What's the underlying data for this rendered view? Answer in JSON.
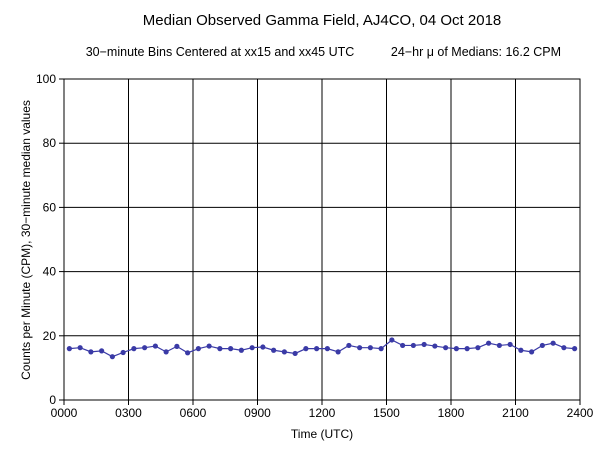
{
  "chart_data": {
    "type": "line",
    "title": "Median Observed Gamma Field, AJ4CO, 04 Oct 2018",
    "subtitle_left": "30−minute Bins Centered at xx15 and xx45 UTC",
    "subtitle_right": "24−hr μ of Medians: 16.2 CPM",
    "xlabel": "Time (UTC)",
    "ylabel": "Counts per Minute (CPM), 30−minute median values",
    "xlim": [
      0,
      2400
    ],
    "ylim": [
      0,
      100
    ],
    "x_tick_labels": [
      "0000",
      "0300",
      "0600",
      "0900",
      "1200",
      "1500",
      "1800",
      "2100",
      "2400"
    ],
    "y_tick_labels": [
      "0",
      "20",
      "40",
      "60",
      "80",
      "100"
    ],
    "grid": true,
    "line_color": "#3a3aa6",
    "series": [
      {
        "x": [
          "0015",
          "0045",
          "0115",
          "0145",
          "0215",
          "0245",
          "0315",
          "0345",
          "0415",
          "0445",
          "0515",
          "0545",
          "0615",
          "0645",
          "0715",
          "0745",
          "0815",
          "0845",
          "0915",
          "0945",
          "1015",
          "1045",
          "1115",
          "1145",
          "1215",
          "1245",
          "1315",
          "1345",
          "1415",
          "1445",
          "1515",
          "1545",
          "1615",
          "1645",
          "1715",
          "1745",
          "1815",
          "1845",
          "1915",
          "1945",
          "2015",
          "2045",
          "2115",
          "2145",
          "2215",
          "2245",
          "2315",
          "2345"
        ],
        "values": [
          16.0,
          16.3,
          15.0,
          15.3,
          13.5,
          14.8,
          16.0,
          16.3,
          16.8,
          15.0,
          16.7,
          14.7,
          16.0,
          16.8,
          16.0,
          16.0,
          15.5,
          16.3,
          16.5,
          15.5,
          15.0,
          14.5,
          16.0,
          16.0,
          16.0,
          15.0,
          17.0,
          16.3,
          16.3,
          16.0,
          18.7,
          17.0,
          17.0,
          17.3,
          16.8,
          16.3,
          16.0,
          16.0,
          16.3,
          17.7,
          17.0,
          17.3,
          15.5,
          15.0,
          17.0,
          17.7,
          16.3,
          16.0
        ]
      }
    ]
  }
}
